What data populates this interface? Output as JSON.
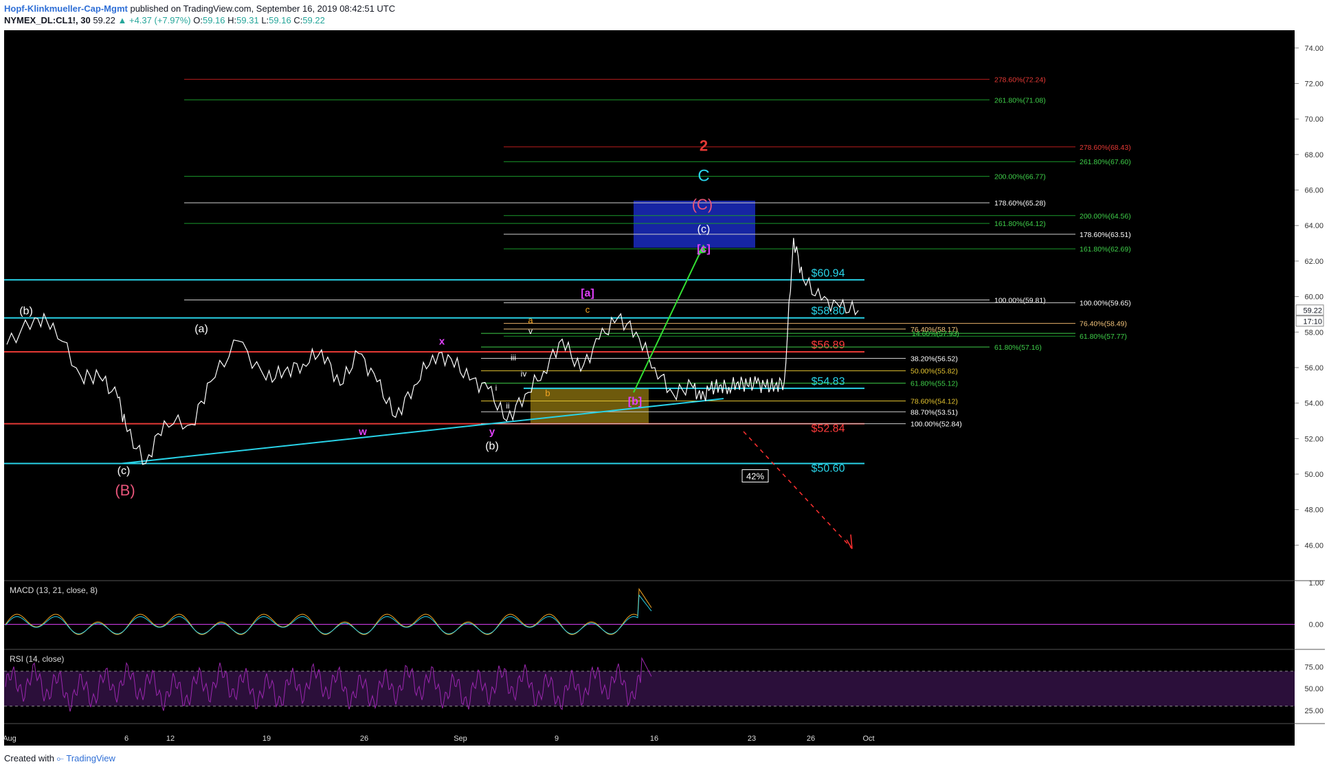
{
  "header": {
    "author": "Hopf-Klinkmueller-Cap-Mgmt",
    "published": "published on TradingView.com, September 16, 2019 08:42:51 UTC",
    "symbol": "NYMEX_DL:CL1!, 30",
    "last": "59.22",
    "change": "▲ +4.37 (+7.97%)",
    "o_label": "O:",
    "o": "59.16",
    "h_label": "H:",
    "h": "59.31",
    "l_label": "L:",
    "l": "59.16",
    "c_label": "C:",
    "c": "59.22"
  },
  "footer": {
    "created": "Created with",
    "brand": "TradingView"
  },
  "colors": {
    "cyan": "#29d3e8",
    "red": "#e53935",
    "green": "#1b9a2c",
    "darkred": "#b71c1c",
    "white": "#ffffff",
    "magenta": "#e040fb",
    "orange": "#f5a623",
    "blue_box": "#1a2bbf",
    "yellow_box": "#c8a415",
    "price": "#ffffff",
    "macd": "#f5a623",
    "rsi": "#9c27b0"
  },
  "chart_data": [
    {
      "type": "line",
      "title": "",
      "x_ticks": [
        "Aug",
        "6",
        "12",
        "19",
        "26",
        "Sep",
        "9",
        "16",
        "23",
        "26",
        "Oct"
      ],
      "ylim": [
        44.0,
        75.0
      ],
      "y_ticks": [
        "74.00",
        "72.00",
        "70.00",
        "68.00",
        "66.00",
        "64.00",
        "62.00",
        "60.00",
        "58.00",
        "56.00",
        "54.00",
        "52.00",
        "50.00",
        "48.00",
        "46.00"
      ],
      "last_price_label": "59.22",
      "countdown_label": "17:10",
      "series": [
        {
          "x": [
            0,
            3,
            5,
            8,
            10,
            12,
            13,
            15,
            17,
            20,
            22,
            25,
            28,
            30,
            32,
            34,
            36,
            38,
            40,
            42,
            44,
            46,
            48,
            50,
            52,
            54,
            56,
            58,
            60,
            62,
            64,
            66,
            68,
            70,
            72,
            74,
            75,
            76,
            77,
            78,
            79,
            80,
            81,
            82,
            83,
            84,
            85,
            86,
            88,
            90,
            92
          ],
          "y": [
            57.3,
            58.8,
            58.5,
            55.5,
            55.5,
            54.3,
            52.4,
            50.6,
            53.0,
            52.8,
            55.2,
            57.5,
            55.3,
            55.8,
            56.2,
            57.0,
            55.0,
            56.8,
            55.2,
            53.2,
            55.0,
            56.7,
            56.5,
            55.3,
            54.8,
            53.0,
            54.5,
            55.8,
            57.6,
            55.8,
            57.6,
            58.8,
            58.0,
            56.0,
            54.5,
            55.0,
            54.2,
            54.8,
            55.0,
            54.9,
            55.2,
            55.0,
            55.1,
            54.9,
            55.0,
            55.2,
            63.3,
            61.0,
            59.8,
            59.4,
            59.22
          ]
        }
      ],
      "levels": [
        {
          "label": "$60.94",
          "value": 60.94
        },
        {
          "label": "$58.80",
          "value": 58.8
        },
        {
          "label": "$56.89",
          "value": 56.89
        },
        {
          "label": "$54.83",
          "value": 54.83
        },
        {
          "label": "$52.84",
          "value": 52.84
        },
        {
          "label": "$50.60",
          "value": 50.6
        }
      ],
      "fib_left": [
        {
          "label": "278.60%(72.24)",
          "value": 72.24
        },
        {
          "label": "261.80%(71.08)",
          "value": 71.08
        },
        {
          "label": "200.00%(66.77)",
          "value": 66.77
        },
        {
          "label": "178.60%(65.28)",
          "value": 65.28
        },
        {
          "label": "161.80%(64.12)",
          "value": 64.12
        },
        {
          "label": "100.00%(59.81)",
          "value": 59.81
        }
      ],
      "fib_right": [
        {
          "label": "278.60%(68.43)",
          "value": 68.43
        },
        {
          "label": "261.80%(67.60)",
          "value": 67.6
        },
        {
          "label": "200.00%(64.56)",
          "value": 64.56
        },
        {
          "label": "178.60%(63.51)",
          "value": 63.51
        },
        {
          "label": "161.80%(62.69)",
          "value": 62.69
        },
        {
          "label": "100.00%(59.65)",
          "value": 59.65
        },
        {
          "label": "76.40%(58.49)",
          "value": 58.49
        },
        {
          "label": "61.80%(57.77)",
          "value": 57.77
        }
      ],
      "fib_retrace": [
        {
          "label": "76.40%(58.17)",
          "value": 58.17
        },
        {
          "label": "14.60%(57.93)",
          "value": 57.93
        },
        {
          "label": "61.80%(57.16)",
          "value": 57.16
        },
        {
          "label": "38.20%(56.52)",
          "value": 56.52
        },
        {
          "label": "50.00%(55.82)",
          "value": 55.82
        },
        {
          "label": "61.80%(55.12)",
          "value": 55.12
        },
        {
          "label": "78.60%(54.12)",
          "value": 54.12
        },
        {
          "label": "88.70%(53.51)",
          "value": 53.51
        },
        {
          "label": "100.00%(52.84)",
          "value": 52.84
        }
      ],
      "wave_labels": [
        "2",
        "C",
        "(C)",
        "(c)",
        "[c]",
        "[a]",
        "[b]",
        "(b)",
        "(a)",
        "(c)",
        "(B)",
        "x",
        "w",
        "y",
        "(b)",
        "a",
        "b",
        "c",
        "v",
        "iii",
        "iv",
        "i",
        "ii"
      ],
      "target_box_label": "42%"
    },
    {
      "type": "line",
      "title": "MACD (13, 21, close, 8)",
      "ylim": [
        -0.6,
        1.05
      ],
      "y_ticks": [
        "1.00",
        "0.00"
      ]
    },
    {
      "type": "line",
      "title": "RSI (14, close)",
      "ylim": [
        10,
        95
      ],
      "y_ticks": [
        "75.00",
        "50.00",
        "25.00"
      ]
    }
  ]
}
